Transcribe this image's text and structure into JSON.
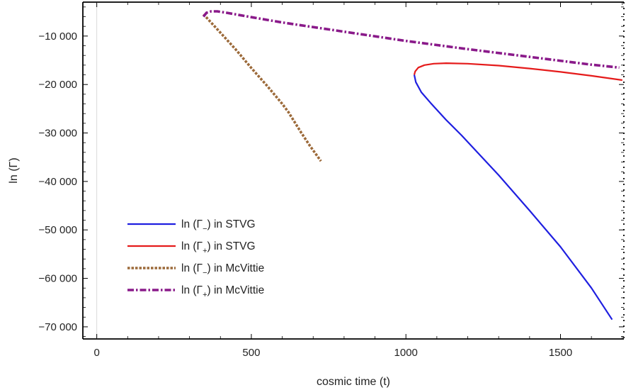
{
  "chart_data": {
    "type": "line",
    "xlabel": "cosmic time (t)",
    "ylabel": "ln (Γ)",
    "xlim": [
      -45,
      1705
    ],
    "ylim": [
      -72500,
      -3000
    ],
    "xticks": [
      {
        "value": 0,
        "label": "0"
      },
      {
        "value": 500,
        "label": "500"
      },
      {
        "value": 1000,
        "label": "1000"
      },
      {
        "value": 1500,
        "label": "1500"
      }
    ],
    "yticks": [
      {
        "value": -10000,
        "label": "−10 000"
      },
      {
        "value": -20000,
        "label": "−20 000"
      },
      {
        "value": -30000,
        "label": "−30 000"
      },
      {
        "value": -40000,
        "label": "−40 000"
      },
      {
        "value": -50000,
        "label": "−50 000"
      },
      {
        "value": -60000,
        "label": "−60 000"
      },
      {
        "value": -70000,
        "label": "−70 000"
      }
    ],
    "grid": false,
    "legend_position": "bottom-left",
    "series": [
      {
        "name": "ln (Γ−) in STVG",
        "name_base": "ln (Γ",
        "name_sub": "−",
        "name_tail": ") in STVG",
        "color": "#1f1fe0",
        "dash": "solid",
        "x": [
          1027,
          1032,
          1050,
          1080,
          1130,
          1180,
          1230,
          1300,
          1400,
          1500,
          1600,
          1667
        ],
        "y": [
          -18000,
          -19500,
          -21600,
          -23800,
          -27300,
          -30500,
          -33900,
          -38700,
          -46000,
          -53500,
          -62000,
          -68500
        ]
      },
      {
        "name": "ln (Γ+) in STVG",
        "name_base": "ln (Γ",
        "name_sub": "+",
        "name_tail": ") in STVG",
        "color": "#e51b1b",
        "dash": "solid",
        "x": [
          1027,
          1030,
          1040,
          1060,
          1090,
          1130,
          1200,
          1300,
          1400,
          1500,
          1600,
          1700
        ],
        "y": [
          -18000,
          -17300,
          -16500,
          -16000,
          -15700,
          -15600,
          -15700,
          -16100,
          -16700,
          -17400,
          -18200,
          -19100
        ]
      },
      {
        "name": "ln (Γ−) in McVittie",
        "name_base": "ln (Γ",
        "name_sub": "−",
        "name_tail": ") in McVittie",
        "color": "#9c6a3a",
        "dash": "dashed",
        "x": [
          345,
          400,
          450,
          500,
          550,
          600,
          620,
          660,
          690,
          725
        ],
        "y": [
          -5500,
          -9300,
          -12800,
          -16600,
          -20200,
          -24000,
          -25700,
          -29800,
          -32700,
          -35800
        ]
      },
      {
        "name": "ln (Γ+) in McVittie",
        "name_base": "ln (Γ",
        "name_sub": "+",
        "name_tail": ") in McVittie",
        "color": "#8a1a8a",
        "dash": "dashdot",
        "x": [
          345,
          355,
          370,
          390,
          420,
          500,
          600,
          800,
          1000,
          1200,
          1400,
          1600,
          1690
        ],
        "y": [
          -6000,
          -5200,
          -4900,
          -4900,
          -5200,
          -6100,
          -7200,
          -9100,
          -11000,
          -12700,
          -14300,
          -15900,
          -16500
        ]
      }
    ]
  }
}
